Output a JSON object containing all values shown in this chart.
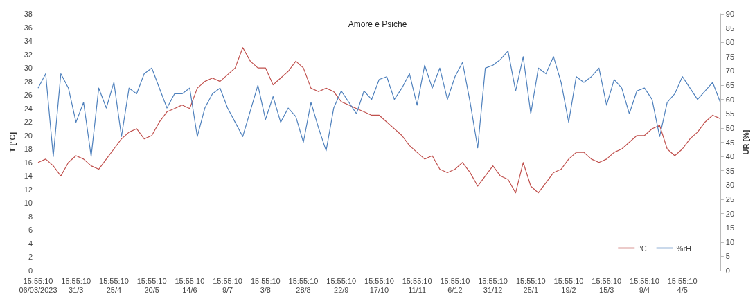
{
  "chart_data": {
    "type": "line",
    "title": "Amore e Psiche",
    "ylabel": "T [°C]",
    "y2label": "UR [%]",
    "categories": [
      "15:55:10\n06/03/2023",
      null,
      null,
      null,
      null,
      "15:55:10\n31/3",
      null,
      null,
      null,
      null,
      "15:55:10\n25/4",
      null,
      null,
      null,
      null,
      "15:55:10\n20/5",
      null,
      null,
      null,
      null,
      "15:55:10\n14/6",
      null,
      null,
      null,
      null,
      "15:55:10\n9/7",
      null,
      null,
      null,
      null,
      "15:55:10\n3/8",
      null,
      null,
      null,
      null,
      "15:55:10\n28/8",
      null,
      null,
      null,
      null,
      "15:55:10\n22/9",
      null,
      null,
      null,
      null,
      "15:55:10\n17/10",
      null,
      null,
      null,
      null,
      "15:55:10\n11/11",
      null,
      null,
      null,
      null,
      "15:55:10\n6/12",
      null,
      null,
      null,
      null,
      "15:55:10\n31/12",
      null,
      null,
      null,
      null,
      "15:55:10\n25/1",
      null,
      null,
      null,
      null,
      "15:55:10\n19/2",
      null,
      null,
      null,
      null,
      "15:55:10\n15/3",
      null,
      null,
      null,
      null,
      "15:55:10\n9/4",
      null,
      null,
      null,
      null,
      "15:55:10\n4/5",
      null,
      null,
      null,
      null,
      null
    ],
    "series": [
      {
        "name": "°C",
        "color": "#c0504d",
        "values": [
          16,
          16.5,
          15.5,
          14,
          16,
          17,
          16.5,
          15.5,
          15,
          16.5,
          18,
          19.5,
          20.5,
          21,
          19.5,
          20,
          22,
          23.5,
          24,
          24.5,
          24,
          27,
          28,
          28.5,
          28,
          29,
          30,
          33,
          31,
          30,
          30,
          27.5,
          28.5,
          29.5,
          31,
          30,
          27,
          26.5,
          27,
          26.5,
          25,
          24.5,
          24,
          23.5,
          23,
          23,
          22,
          21,
          20,
          18.5,
          17.5,
          16.5,
          17,
          15,
          14.5,
          15,
          16,
          14.5,
          12.5,
          14,
          15.5,
          14,
          13.5,
          11.5,
          16,
          12.5,
          11.5,
          13,
          14.5,
          15,
          16.5,
          17.5,
          17.5,
          16.5,
          16,
          16.5,
          17.5,
          18,
          19,
          20,
          20,
          21,
          21.5,
          18,
          17,
          18,
          19.5,
          20.5,
          22,
          23,
          22.5
        ]
      },
      {
        "name": "%rH",
        "color": "#4f81bd",
        "axis": "y2",
        "values": [
          64,
          69,
          40,
          69,
          64,
          52,
          59,
          40,
          64,
          57,
          66,
          47,
          64,
          62,
          69,
          71,
          64,
          57,
          62,
          62,
          64,
          47,
          57,
          62,
          64,
          57,
          52,
          47,
          56,
          65,
          53,
          61,
          52,
          57,
          54,
          45,
          59,
          50,
          42,
          57,
          63,
          59,
          55,
          63,
          60,
          67,
          68,
          60,
          64,
          69,
          58,
          72,
          64,
          71,
          60,
          68,
          73,
          59,
          43,
          71,
          72,
          74,
          77,
          63,
          75,
          55,
          71,
          69,
          75,
          66,
          52,
          68,
          66,
          68,
          71,
          58,
          67,
          64,
          55,
          63,
          64,
          60,
          47,
          59,
          62,
          68,
          64,
          60,
          63,
          66,
          59
        ]
      }
    ],
    "ylim": [
      0,
      38
    ],
    "yticks": [
      0,
      2,
      4,
      6,
      8,
      10,
      12,
      14,
      16,
      18,
      20,
      22,
      24,
      26,
      28,
      30,
      32,
      34,
      36,
      38
    ],
    "y2lim": [
      0,
      90
    ],
    "y2ticks": [
      0,
      5,
      10,
      15,
      20,
      25,
      30,
      35,
      40,
      45,
      50,
      55,
      60,
      65,
      70,
      75,
      80,
      85,
      90
    ],
    "grid": false,
    "legend": "bottom right",
    "marker": "none",
    "line_style": "solid"
  }
}
